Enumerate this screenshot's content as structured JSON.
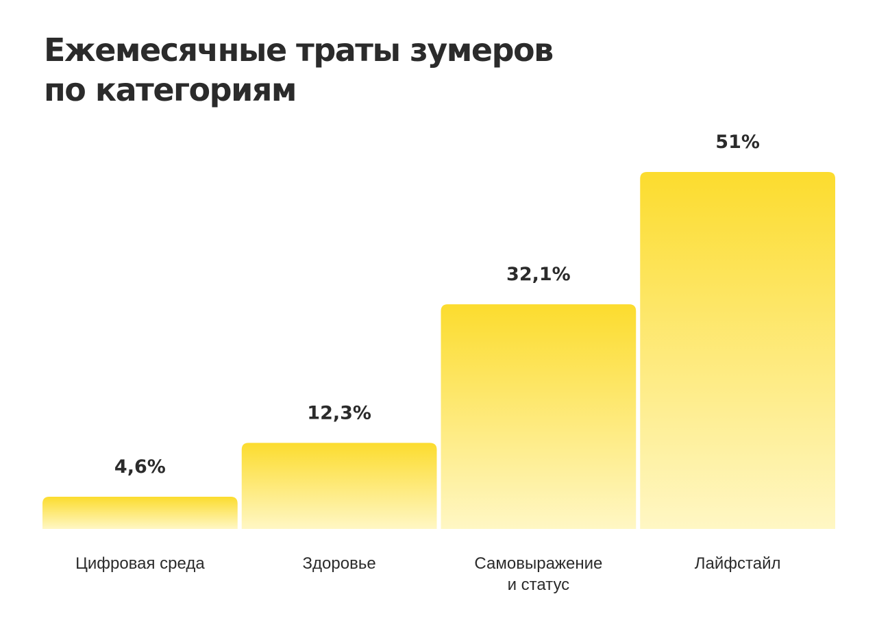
{
  "header": {
    "title_line1": "Ежемесячные траты зумеров",
    "title_line2": "по категориям"
  },
  "colors": {
    "bar_top": "#fcdc2e",
    "bar_bottom": "#fff7c4",
    "text": "#2b2b2b"
  },
  "chart_data": {
    "type": "bar",
    "title": "Ежемесячные траты зумеров по категориям",
    "categories": [
      [
        "Цифровая среда"
      ],
      [
        "Здоровье"
      ],
      [
        "Самовыражение",
        "и статус"
      ],
      [
        "Лайфстайл"
      ]
    ],
    "values": [
      4.6,
      12.3,
      32.1,
      51
    ],
    "value_labels": [
      "4,6%",
      "12,3%",
      "32,1%",
      "51%"
    ],
    "xlabel": "",
    "ylabel": "",
    "ylim": [
      0,
      51
    ],
    "grid": false,
    "legend": "none"
  }
}
